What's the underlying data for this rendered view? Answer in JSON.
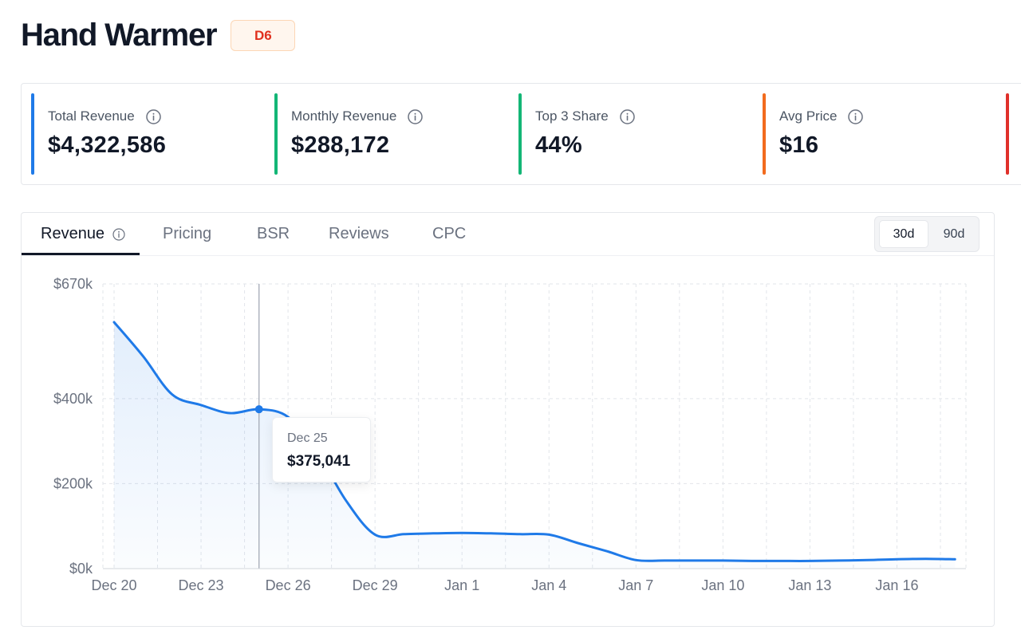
{
  "product": {
    "title": "Hand Warmer",
    "badge": "D6"
  },
  "stats": [
    {
      "label": "Total Revenue",
      "value": "$4,322,586",
      "color": "#1f7ae8"
    },
    {
      "label": "Monthly Revenue",
      "value": "$288,172",
      "color": "#13b676"
    },
    {
      "label": "Top 3 Share",
      "value": "44%",
      "color": "#13b676"
    },
    {
      "label": "Avg Price",
      "value": "$16",
      "color": "#f26b1d"
    },
    {
      "label": "",
      "value": "",
      "color": "#e0302a"
    }
  ],
  "tabs": [
    "Revenue",
    "Pricing",
    "BSR",
    "Reviews",
    "CPC"
  ],
  "active_tab": "Revenue",
  "range": {
    "options": [
      "30d",
      "90d"
    ],
    "selected": "30d"
  },
  "tooltip": {
    "date": "Dec 25",
    "value": "$375,041"
  },
  "colors": {
    "line": "#1f7ae8",
    "grid": "#e2e5ea",
    "axis_text": "#6b7280"
  },
  "chart_data": {
    "type": "area",
    "ylim": [
      0,
      670000
    ],
    "y_ticks": [
      0,
      200000,
      400000,
      670000
    ],
    "y_tick_labels": [
      "$0k",
      "$200k",
      "$400k",
      "$670k"
    ],
    "x_tick_labels": [
      "Dec 20",
      "Dec 23",
      "Dec 26",
      "Dec 29",
      "Jan 1",
      "Jan 4",
      "Jan 7",
      "Jan 10",
      "Jan 13",
      "Jan 16"
    ],
    "x_tick_dates": [
      "2023-12-20",
      "2023-12-23",
      "2023-12-26",
      "2023-12-29",
      "2024-01-01",
      "2024-01-04",
      "2024-01-07",
      "2024-01-10",
      "2024-01-13",
      "2024-01-16"
    ],
    "grid": true,
    "highlight": {
      "date": "2023-12-25",
      "value": 375041
    },
    "series": [
      {
        "dates": [
          "2023-12-20",
          "2023-12-21",
          "2023-12-22",
          "2023-12-23",
          "2023-12-24",
          "2023-12-25",
          "2023-12-26",
          "2023-12-27",
          "2023-12-28",
          "2023-12-29",
          "2023-12-30",
          "2023-12-31",
          "2024-01-01",
          "2024-01-02",
          "2024-01-03",
          "2024-01-04",
          "2024-01-05",
          "2024-01-06",
          "2024-01-07",
          "2024-01-08",
          "2024-01-09",
          "2024-01-10",
          "2024-01-11",
          "2024-01-12",
          "2024-01-13",
          "2024-01-14",
          "2024-01-15",
          "2024-01-16",
          "2024-01-17",
          "2024-01-18"
        ],
        "values": [
          580000,
          500000,
          410000,
          385000,
          366000,
          375041,
          357000,
          275000,
          160000,
          80000,
          81000,
          83000,
          84000,
          83000,
          81000,
          80000,
          60000,
          41000,
          20000,
          19000,
          19000,
          19000,
          18000,
          18000,
          18000,
          19000,
          20000,
          22000,
          23000,
          22000
        ]
      }
    ]
  }
}
